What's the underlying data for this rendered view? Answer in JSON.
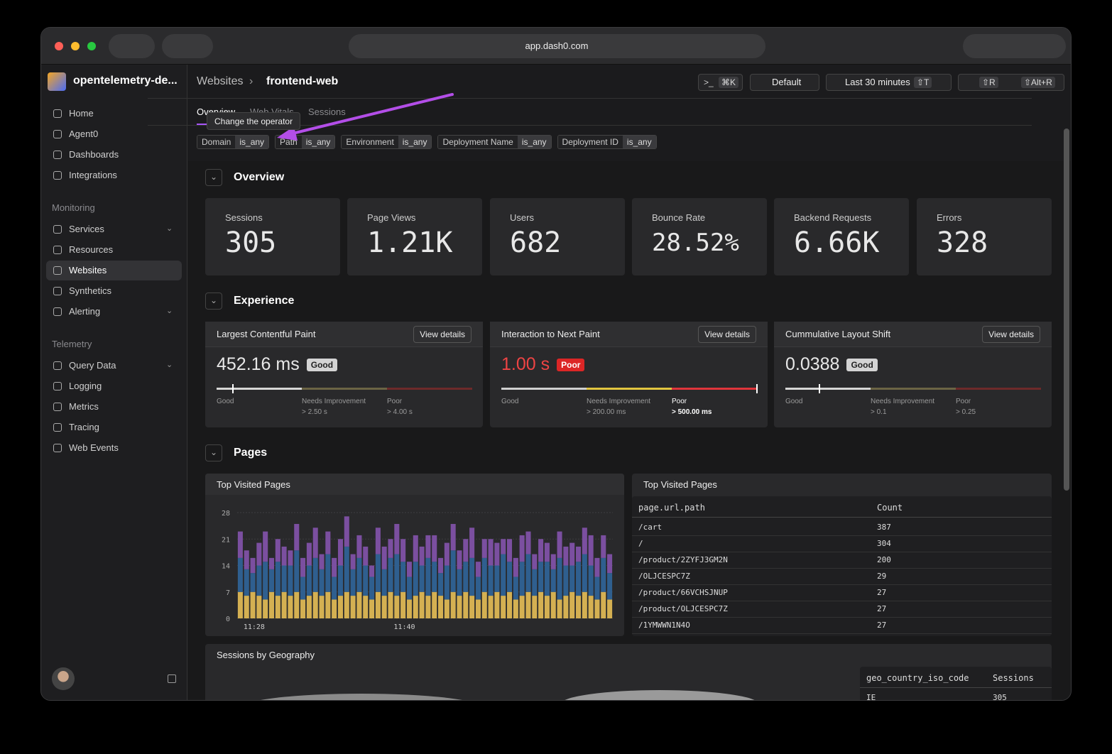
{
  "browser": {
    "url": "app.dash0.com"
  },
  "sidebar": {
    "org": "opentelemetry-de...",
    "nav": [
      "Home",
      "Agent0",
      "Dashboards",
      "Integrations"
    ],
    "sections": [
      {
        "title": "Monitoring",
        "items": [
          "Services",
          "Resources",
          "Websites",
          "Synthetics",
          "Alerting"
        ]
      },
      {
        "title": "Telemetry",
        "items": [
          "Query Data",
          "Logging",
          "Metrics",
          "Tracing",
          "Web Events"
        ]
      }
    ]
  },
  "header": {
    "breadcrumb": [
      "Websites",
      "frontend-web"
    ],
    "command_shortcut": "⌘K",
    "view": "Default",
    "time_range": "Last 30 minutes",
    "time_shortcut": "⇧T",
    "refresh_shortcut": "⇧R",
    "auto_refresh_shortcut": "⇧Alt+R"
  },
  "tabs": [
    "Overview",
    "Web Vitals",
    "Sessions"
  ],
  "tooltip": "Change the operator",
  "filters": [
    {
      "field": "Domain",
      "operator": "is_any"
    },
    {
      "field": "Path",
      "operator": "is_any"
    },
    {
      "field": "Environment",
      "operator": "is_any"
    },
    {
      "field": "Deployment Name",
      "operator": "is_any"
    },
    {
      "field": "Deployment ID",
      "operator": "is_any"
    }
  ],
  "overview": {
    "title": "Overview",
    "stats": [
      {
        "label": "Sessions",
        "value": "305"
      },
      {
        "label": "Page Views",
        "value": "1.21K"
      },
      {
        "label": "Users",
        "value": "682"
      },
      {
        "label": "Bounce Rate",
        "value": "28.52%"
      },
      {
        "label": "Backend Requests",
        "value": "6.66K"
      },
      {
        "label": "Errors",
        "value": "328"
      }
    ]
  },
  "experience": {
    "title": "Experience",
    "cards": [
      {
        "title": "Largest Contentful Paint",
        "action": "View details",
        "value": "452.16 ms",
        "rating": "Good",
        "scale": [
          {
            "label": "Good"
          },
          {
            "label": "Needs Improvement",
            "threshold": "> 2.50 s"
          },
          {
            "label": "Poor",
            "threshold": "> 4.00 s"
          }
        ]
      },
      {
        "title": "Interaction to Next Paint",
        "action": "View details",
        "value": "1.00 s",
        "rating": "Poor",
        "scale": [
          {
            "label": "Good"
          },
          {
            "label": "Needs Improvement",
            "threshold": "> 200.00 ms"
          },
          {
            "label": "Poor",
            "threshold": "> 500.00 ms"
          }
        ]
      },
      {
        "title": "Cummulative Layout Shift",
        "action": "View details",
        "value": "0.0388",
        "rating": "Good",
        "scale": [
          {
            "label": "Good"
          },
          {
            "label": "Needs Improvement",
            "threshold": "> 0.1"
          },
          {
            "label": "Poor",
            "threshold": "> 0.25"
          }
        ]
      }
    ]
  },
  "pages": {
    "title": "Pages",
    "chart": {
      "type": "bar",
      "stacked": true,
      "title": "Top Visited Pages",
      "ylim": [
        0,
        28
      ],
      "yticks": [
        0,
        7,
        14,
        21,
        28
      ],
      "grid": true,
      "categories": [
        null,
        "11:28",
        null,
        null,
        null,
        null,
        null,
        null,
        null,
        null,
        null,
        null,
        null,
        null,
        null,
        null,
        null,
        null,
        null,
        null,
        null,
        null,
        null,
        null,
        null,
        "11:40",
        null,
        null,
        null,
        null,
        null,
        null,
        null,
        null,
        null,
        null,
        null,
        null,
        null,
        null,
        null,
        null,
        null,
        null,
        null,
        null,
        null,
        null,
        null,
        null,
        null,
        null,
        null,
        null,
        null,
        null,
        null,
        null,
        null,
        null
      ],
      "series": [
        {
          "color": "#d4b052",
          "values": [
            7,
            6,
            7,
            6,
            5,
            7,
            6,
            7,
            6,
            7,
            5,
            6,
            7,
            6,
            7,
            5,
            6,
            7,
            6,
            7,
            6,
            5,
            7,
            6,
            7,
            6,
            7,
            5,
            6,
            7,
            6,
            7,
            6,
            5,
            7,
            6,
            7,
            6,
            5,
            7,
            6,
            7,
            6,
            7,
            5,
            6,
            7,
            6,
            7,
            6,
            7,
            5,
            6,
            7,
            6,
            7,
            6,
            5,
            7,
            5
          ]
        },
        {
          "color": "#2f5f8f",
          "values": [
            9,
            7,
            5,
            8,
            10,
            6,
            9,
            7,
            8,
            11,
            6,
            8,
            9,
            7,
            10,
            6,
            8,
            12,
            7,
            9,
            8,
            6,
            10,
            7,
            9,
            11,
            8,
            6,
            9,
            7,
            10,
            8,
            6,
            9,
            11,
            7,
            8,
            10,
            6,
            9,
            8,
            7,
            11,
            8,
            6,
            9,
            10,
            7,
            8,
            9,
            6,
            11,
            8,
            7,
            9,
            10,
            8,
            6,
            9,
            7
          ]
        },
        {
          "color": "#7b4fa0",
          "values": [
            7,
            5,
            4,
            6,
            8,
            3,
            6,
            5,
            4,
            7,
            5,
            6,
            8,
            4,
            6,
            5,
            7,
            8,
            4,
            6,
            5,
            3,
            7,
            6,
            5,
            8,
            6,
            4,
            7,
            5,
            6,
            7,
            4,
            6,
            7,
            5,
            6,
            8,
            4,
            5,
            7,
            6,
            4,
            6,
            5,
            7,
            6,
            4,
            6,
            5,
            4,
            7,
            5,
            6,
            4,
            7,
            8,
            5,
            6,
            5
          ]
        }
      ]
    },
    "table": {
      "title": "Top Visited Pages",
      "columns": [
        "page.url.path",
        "Count"
      ],
      "rows": [
        [
          "/cart",
          "387"
        ],
        [
          "/",
          "304"
        ],
        [
          "/product/2ZYFJ3GM2N",
          "200"
        ],
        [
          "/OLJCESPC7Z",
          "29"
        ],
        [
          "/product/66VCHSJNUP",
          "27"
        ],
        [
          "/product/OLJCESPC7Z",
          "27"
        ],
        [
          "/1YMWWN1N4O",
          "27"
        ]
      ]
    }
  },
  "geography": {
    "title": "Sessions by Geography",
    "columns": [
      "geo_country_iso_code",
      "Sessions"
    ],
    "rows": [
      [
        "IE",
        "305"
      ]
    ]
  }
}
